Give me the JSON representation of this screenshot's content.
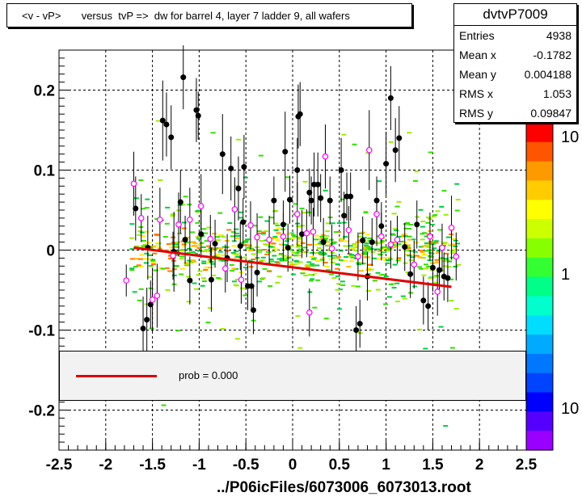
{
  "chart_data": {
    "type": "scatter",
    "title": "<v - vP>       versus  tvP =>  dw for barrel 4, layer 7 ladder 9, all wafers",
    "xlabel": "",
    "ylabel": "",
    "xlim": [
      -2.5,
      2.5
    ],
    "ylim": [
      -0.25,
      0.25
    ],
    "x_ticks": [
      -2.5,
      -2,
      -1.5,
      -1,
      -0.5,
      0,
      0.5,
      1,
      1.5,
      2,
      2.5
    ],
    "x_tick_labels": [
      "-2.5",
      "-2",
      "-1.5",
      "-1",
      "-0.5",
      "0",
      "0.5",
      "1",
      "1.5",
      "2",
      "2.5"
    ],
    "y_ticks": [
      -0.2,
      -0.1,
      0,
      0.1,
      0.2
    ],
    "y_tick_labels": [
      "-0.2",
      "-0.1",
      "0",
      "0.1",
      "0.2"
    ],
    "grid": true,
    "series": [
      {
        "marker": "filled-circle",
        "color": "#000000",
        "points": [
          [
            -1.68,
            0.052,
            0.04
          ],
          [
            -1.6,
            -0.098,
            0.04
          ],
          [
            -1.56,
            -0.087,
            0.04
          ],
          [
            -1.55,
            0.003,
            0.04
          ],
          [
            -1.52,
            -0.068,
            0.03
          ],
          [
            -1.39,
            0.162,
            0.05
          ],
          [
            -1.35,
            0.157,
            0.04
          ],
          [
            -1.3,
            0.141,
            0.04
          ],
          [
            -1.27,
            -0.002,
            0.05
          ],
          [
            -1.2,
            0.06,
            0.04
          ],
          [
            -1.17,
            0.216,
            0.04
          ],
          [
            -1.15,
            0.013,
            0.03
          ],
          [
            -1.1,
            -0.038,
            0.03
          ],
          [
            -1.03,
            0.175,
            0.04
          ],
          [
            -1.01,
            0.168,
            0.03
          ],
          [
            -0.98,
            0.02,
            0.03
          ],
          [
            -0.87,
            -0.037,
            0.04
          ],
          [
            -0.83,
            0.008,
            0.03
          ],
          [
            -0.75,
            0.12,
            0.05
          ],
          [
            -0.7,
            -0.01,
            0.03
          ],
          [
            -0.66,
            0.102,
            0.04
          ],
          [
            -0.58,
            0.077,
            0.04
          ],
          [
            -0.56,
            0.005,
            0.03
          ],
          [
            -0.53,
            0.035,
            0.03
          ],
          [
            -0.52,
            0.104,
            0.04
          ],
          [
            -0.48,
            -0.045,
            0.03
          ],
          [
            -0.44,
            -0.045,
            0.03
          ],
          [
            -0.42,
            -0.075,
            0.03
          ],
          [
            -0.38,
            -0.028,
            0.03
          ],
          [
            -0.2,
            0.062,
            0.03
          ],
          [
            -0.1,
            0.032,
            0.03
          ],
          [
            -0.08,
            0.123,
            0.05
          ],
          [
            -0.05,
            0.003,
            0.03
          ],
          [
            -0.03,
            0.063,
            0.03
          ],
          [
            0.05,
            0.1,
            0.04
          ],
          [
            0.06,
            0.167,
            0.04
          ],
          [
            0.08,
            0.17,
            0.04
          ],
          [
            0.1,
            0.02,
            0.03
          ],
          [
            0.18,
            0.072,
            0.03
          ],
          [
            0.2,
            0.062,
            0.03
          ],
          [
            0.23,
            0.082,
            0.04
          ],
          [
            0.27,
            0.082,
            0.04
          ],
          [
            0.3,
            0.065,
            0.03
          ],
          [
            0.33,
            0.01,
            0.03
          ],
          [
            0.4,
            0.062,
            0.03
          ],
          [
            0.52,
            0.1,
            0.04
          ],
          [
            0.55,
            0.043,
            0.03
          ],
          [
            0.58,
            0.067,
            0.03
          ],
          [
            0.62,
            0.067,
            0.03
          ],
          [
            0.68,
            -0.1,
            0.03
          ],
          [
            0.72,
            -0.092,
            0.03
          ],
          [
            0.75,
            0.012,
            0.03
          ],
          [
            0.8,
            -0.033,
            0.03
          ],
          [
            0.85,
            0.01,
            0.03
          ],
          [
            0.9,
            0.062,
            0.03
          ],
          [
            0.95,
            0.03,
            0.03
          ],
          [
            1.0,
            0.108,
            0.04
          ],
          [
            1.05,
            0.19,
            0.04
          ],
          [
            1.1,
            0.125,
            0.04
          ],
          [
            1.14,
            0.14,
            0.04
          ],
          [
            1.2,
            0.004,
            0.03
          ],
          [
            1.26,
            -0.03,
            0.03
          ],
          [
            1.33,
            0.032,
            0.03
          ],
          [
            1.4,
            -0.063,
            0.03
          ],
          [
            1.45,
            -0.07,
            0.03
          ],
          [
            1.5,
            -0.022,
            0.03
          ],
          [
            1.57,
            -0.025,
            0.03
          ],
          [
            1.62,
            -0.033,
            0.03
          ],
          [
            1.66,
            -0.035,
            0.03
          ]
        ]
      },
      {
        "marker": "open-circle",
        "color": "#ff00ff",
        "points": [
          [
            -1.78,
            -0.038,
            0.02
          ],
          [
            -1.7,
            0.083,
            0.04
          ],
          [
            -1.62,
            0.04,
            0.03
          ],
          [
            -1.5,
            -0.062,
            0.04
          ],
          [
            -1.45,
            -0.057,
            0.04
          ],
          [
            -1.42,
            0.038,
            0.04
          ],
          [
            -1.28,
            -0.007,
            0.03
          ],
          [
            -1.22,
            0.032,
            0.04
          ],
          [
            -1.1,
            0.038,
            0.04
          ],
          [
            -0.98,
            0.055,
            0.04
          ],
          [
            -0.88,
            0.014,
            0.03
          ],
          [
            -0.72,
            -0.023,
            0.03
          ],
          [
            -0.62,
            0.051,
            0.04
          ],
          [
            -0.55,
            -0.037,
            0.03
          ],
          [
            -0.45,
            0.031,
            0.03
          ],
          [
            -0.38,
            0.016,
            0.03
          ],
          [
            -0.25,
            0.013,
            0.03
          ],
          [
            -0.1,
            0.017,
            0.03
          ],
          [
            0.05,
            0.045,
            0.04
          ],
          [
            0.15,
            0.021,
            0.03
          ],
          [
            0.18,
            -0.078,
            0.03
          ],
          [
            0.22,
            0.023,
            0.03
          ],
          [
            0.35,
            0.117,
            0.04
          ],
          [
            0.42,
            0.002,
            0.03
          ],
          [
            0.6,
            0.025,
            0.03
          ],
          [
            0.7,
            -0.008,
            0.03
          ],
          [
            0.82,
            0.125,
            0.05
          ],
          [
            0.9,
            0.045,
            0.04
          ],
          [
            0.95,
            0.017,
            0.03
          ],
          [
            1.05,
            0.007,
            0.03
          ],
          [
            1.12,
            0.013,
            0.03
          ],
          [
            1.3,
            -0.018,
            0.03
          ],
          [
            1.47,
            0.017,
            0.03
          ],
          [
            1.55,
            -0.052,
            0.03
          ],
          [
            1.6,
            0.003,
            0.03
          ],
          [
            1.7,
            0.028,
            0.04
          ],
          [
            1.75,
            -0.008,
            0.03
          ]
        ]
      },
      {
        "name": "fit",
        "type": "line",
        "color": "#e00000",
        "x": [
          -1.7,
          1.7
        ],
        "y": [
          0.003,
          -0.046
        ]
      }
    ],
    "palette": {
      "type": "colorbar",
      "tick_labels": [
        "10",
        "1",
        "10"
      ]
    },
    "legend": {
      "placement": "bottom",
      "entries": [
        {
          "label": "prob = 0.000",
          "color": "#e00000"
        }
      ]
    },
    "stats": {
      "title": "dvtvP7009",
      "rows": [
        {
          "label": "Entries",
          "value": "4938"
        },
        {
          "label": "Mean x",
          "value": "-0.1782"
        },
        {
          "label": "Mean y",
          "value": "0.004188"
        },
        {
          "label": "RMS x",
          "value": "1.053"
        },
        {
          "label": "RMS y",
          "value": "0.09847"
        }
      ]
    },
    "footer": "../P06icFiles/6073006_6073013.root"
  }
}
